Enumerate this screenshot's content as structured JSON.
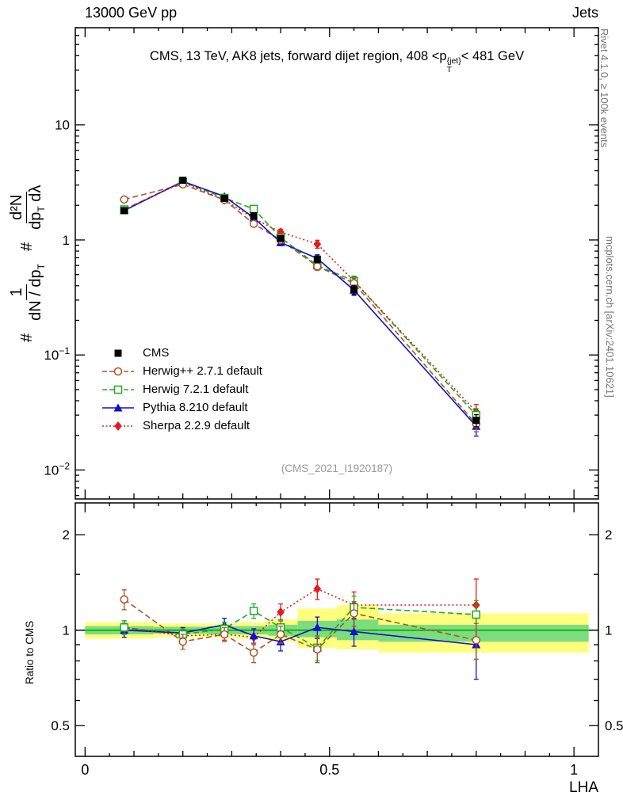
{
  "header": {
    "left": "13000 GeV pp",
    "right": "Jets"
  },
  "title": {
    "pre": "CMS, 13 TeV, AK8 jets, forward dijet region, 408 <p",
    "sup": "{jet}",
    "sub": "T",
    "post": "< 481 GeV"
  },
  "ylabel": {
    "hash1": "#",
    "num1": "1",
    "den1": "dN / dp",
    "den1sub": "T",
    "hash2": "#",
    "num2": "d²N",
    "den2a": "dp",
    "den2asub": "T",
    "den2b": " dλ"
  },
  "ratio_panel": {
    "ylabel": "Ratio to CMS"
  },
  "side": {
    "rivet": "Rivet 4.1.0, ≥ 100k events",
    "mcplots": "mcplots.cern.ch [arXiv:2401.10621]"
  },
  "watermark": "(CMS_2021_I1920187)",
  "axes_text": {
    "xlabel": "LHA"
  },
  "chart_data": {
    "type": "line",
    "title": "CMS, 13 TeV, AK8 jets, forward dijet region, 408 < pT{jet} < 481 GeV",
    "xlabel": "LHA",
    "ylabel": "# 1/(dN/dpT) d²N/(dpT dλ)",
    "ratio_ylabel": "Ratio to CMS",
    "xlim": [
      -0.02,
      1.05
    ],
    "ylim_main": [
      0.0056,
      70
    ],
    "ylim_ratio": [
      0.4,
      2.52
    ],
    "x": [
      0.08,
      0.2,
      0.285,
      0.345,
      0.4,
      0.475,
      0.55,
      0.8
    ],
    "series": [
      {
        "id": "cms",
        "name": "CMS",
        "color": "#000000",
        "marker": "square-filled",
        "line": "none",
        "values": [
          1.8,
          3.3,
          2.3,
          1.62,
          1.03,
          0.68,
          0.37,
          0.027
        ],
        "yerr_rel": [
          0.05,
          0.03,
          0.03,
          0.04,
          0.06,
          0.07,
          0.09,
          0.12
        ]
      },
      {
        "id": "herwigpp",
        "name": "Herwig++ 2.7.1 default",
        "color": "#a65628",
        "marker": "circle-open",
        "line": "dashed",
        "values": [
          2.25,
          3.04,
          2.23,
          1.38,
          1.0,
          0.59,
          0.42,
          0.025
        ],
        "yerr_rel": [
          0.06,
          0.04,
          0.04,
          0.05,
          0.06,
          0.08,
          0.1,
          0.14
        ],
        "ratio": [
          1.25,
          0.92,
          0.97,
          0.85,
          0.97,
          0.87,
          1.13,
          0.93
        ],
        "ratio_err": [
          0.09,
          0.05,
          0.05,
          0.06,
          0.06,
          0.08,
          0.1,
          0.12
        ]
      },
      {
        "id": "herwig7",
        "name": "Herwig 7.2.1 default",
        "color": "#22aa22",
        "marker": "square-open",
        "line": "dashed",
        "values": [
          1.84,
          3.2,
          2.32,
          1.86,
          1.05,
          0.6,
          0.44,
          0.03
        ],
        "yerr_rel": [
          0.06,
          0.04,
          0.04,
          0.05,
          0.06,
          0.08,
          0.1,
          0.14
        ],
        "ratio": [
          1.02,
          0.97,
          1.01,
          1.15,
          1.02,
          0.88,
          1.18,
          1.12
        ],
        "ratio_err": [
          0.05,
          0.04,
          0.05,
          0.06,
          0.06,
          0.08,
          0.1,
          0.12
        ]
      },
      {
        "id": "pythia",
        "name": "Pythia 8.210 default",
        "color": "#1111cc",
        "marker": "triangle-filled",
        "line": "solid",
        "values": [
          1.8,
          3.23,
          2.39,
          1.56,
          0.95,
          0.69,
          0.366,
          0.024
        ],
        "yerr_rel": [
          0.05,
          0.04,
          0.04,
          0.05,
          0.06,
          0.08,
          0.1,
          0.18
        ],
        "ratio": [
          1.0,
          0.98,
          1.04,
          0.96,
          0.92,
          1.02,
          0.99,
          0.9
        ],
        "ratio_err": [
          0.05,
          0.04,
          0.05,
          0.05,
          0.06,
          0.08,
          0.1,
          0.2
        ]
      },
      {
        "id": "sherpa",
        "name": "Sherpa 2.2.9 default",
        "color": "#e41a1c",
        "marker": "diamond-filled",
        "line": "dotted",
        "values": [
          1.84,
          3.17,
          2.23,
          1.54,
          1.17,
          0.92,
          0.44,
          0.032
        ],
        "yerr_rel": [
          0.05,
          0.04,
          0.04,
          0.05,
          0.06,
          0.08,
          0.1,
          0.16
        ],
        "ratio": [
          1.02,
          0.96,
          0.97,
          0.95,
          1.14,
          1.35,
          1.2,
          1.2
        ],
        "ratio_err": [
          0.05,
          0.04,
          0.04,
          0.05,
          0.07,
          0.1,
          0.12,
          0.25
        ]
      }
    ],
    "bands": {
      "edges": [
        0.0,
        0.14,
        0.25,
        0.315,
        0.375,
        0.435,
        0.515,
        0.6,
        1.03
      ],
      "yellow": [
        [
          0.94,
          1.06
        ],
        [
          0.95,
          1.05
        ],
        [
          0.95,
          1.05
        ],
        [
          0.94,
          1.06
        ],
        [
          0.92,
          1.08
        ],
        [
          0.88,
          1.17
        ],
        [
          0.87,
          1.2
        ],
        [
          0.85,
          1.13
        ]
      ],
      "green": [
        [
          0.97,
          1.03
        ],
        [
          0.975,
          1.025
        ],
        [
          0.97,
          1.03
        ],
        [
          0.97,
          1.03
        ],
        [
          0.96,
          1.04
        ],
        [
          0.95,
          1.07
        ],
        [
          0.93,
          1.08
        ],
        [
          0.92,
          1.04
        ]
      ]
    },
    "style": {
      "yellow": "#ffff7d",
      "green": "#7ddc7d",
      "refline": "#00aa00"
    },
    "axes": {
      "x": [
        {
          "v": 0,
          "t": "0"
        },
        {
          "v": 0.5,
          "t": "0.5"
        },
        {
          "v": 1,
          "t": "1"
        }
      ],
      "y_main": [
        {
          "v": 10,
          "base": "10",
          "exp": ""
        },
        {
          "v": 1,
          "base": "1",
          "exp": ""
        },
        {
          "v": 0.1,
          "base": "10",
          "exp": "−1"
        },
        {
          "v": 0.01,
          "base": "10",
          "exp": "−2"
        }
      ],
      "y_ratio": [
        {
          "v": 2,
          "t": "2"
        },
        {
          "v": 1,
          "t": "1"
        },
        {
          "v": 0.5,
          "t": "0.5"
        }
      ],
      "y_ratio_minor": [
        0.6,
        0.7,
        0.8,
        0.9,
        1.5
      ]
    }
  }
}
